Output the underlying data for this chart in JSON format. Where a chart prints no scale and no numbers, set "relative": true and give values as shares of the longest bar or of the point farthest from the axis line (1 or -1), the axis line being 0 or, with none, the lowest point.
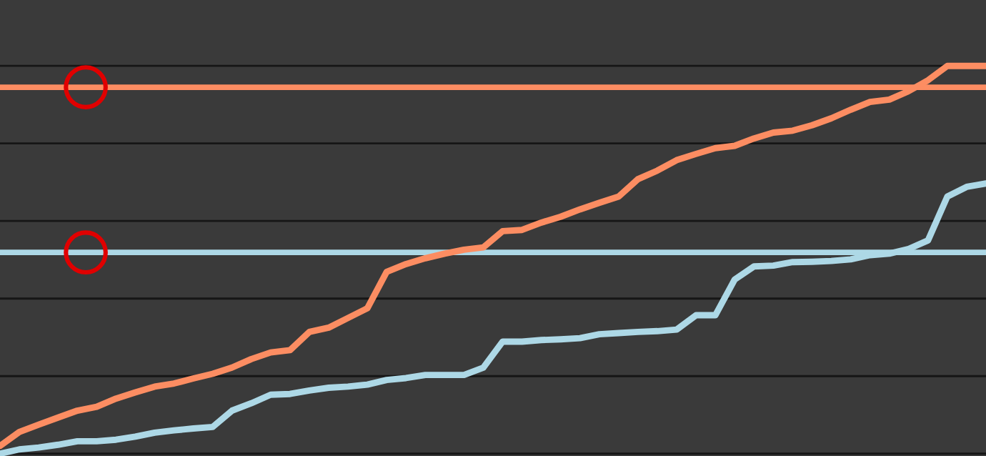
{
  "chart_data": {
    "type": "line",
    "relative": true,
    "grid": true,
    "categories": [
      null,
      null,
      null,
      null,
      null,
      null,
      null,
      null,
      null,
      null,
      null,
      null,
      null,
      null,
      null,
      null,
      null,
      null,
      null,
      null,
      null,
      null,
      null,
      null,
      null,
      null,
      null,
      null,
      null,
      null,
      null,
      null,
      null,
      null,
      null,
      null,
      null,
      null,
      null,
      null,
      null,
      null,
      null,
      null,
      null,
      null,
      null,
      null,
      null,
      null,
      null,
      null
    ],
    "series": [
      {
        "color": "#fc8d62",
        "values": [
          0.02,
          0.056,
          0.075,
          0.093,
          0.111,
          0.121,
          0.142,
          0.158,
          0.173,
          0.181,
          0.194,
          0.206,
          0.222,
          0.244,
          0.261,
          0.267,
          0.314,
          0.325,
          0.35,
          0.375,
          0.469,
          0.489,
          0.504,
          0.516,
          0.526,
          0.532,
          0.574,
          0.577,
          0.596,
          0.611,
          0.63,
          0.647,
          0.663,
          0.708,
          0.73,
          0.757,
          0.773,
          0.788,
          0.794,
          0.813,
          0.828,
          0.833,
          0.847,
          0.865,
          0.887,
          0.907,
          0.913,
          0.935,
          0.963,
          1.0,
          1.0,
          1.0
        ]
      },
      {
        "color": "#add8e6",
        "values": [
          0,
          0.011,
          0.016,
          0.023,
          0.032,
          0.032,
          0.036,
          0.044,
          0.054,
          0.06,
          0.065,
          0.069,
          0.111,
          0.13,
          0.152,
          0.154,
          0.163,
          0.17,
          0.173,
          0.178,
          0.19,
          0.195,
          0.203,
          0.203,
          0.203,
          0.222,
          0.289,
          0.289,
          0.293,
          0.295,
          0.298,
          0.308,
          0.311,
          0.314,
          0.316,
          0.32,
          0.357,
          0.357,
          0.449,
          0.483,
          0.485,
          0.494,
          0.495,
          0.497,
          0.501,
          0.512,
          0.516,
          0.528,
          0.55,
          0.663,
          0.688,
          0.697
        ]
      }
    ],
    "ref_lines": [
      {
        "axis": "y",
        "value": 0.945,
        "color": "#fc8d62"
      },
      {
        "axis": "y",
        "value": 0.519,
        "color": "#add8e6"
      }
    ]
  }
}
